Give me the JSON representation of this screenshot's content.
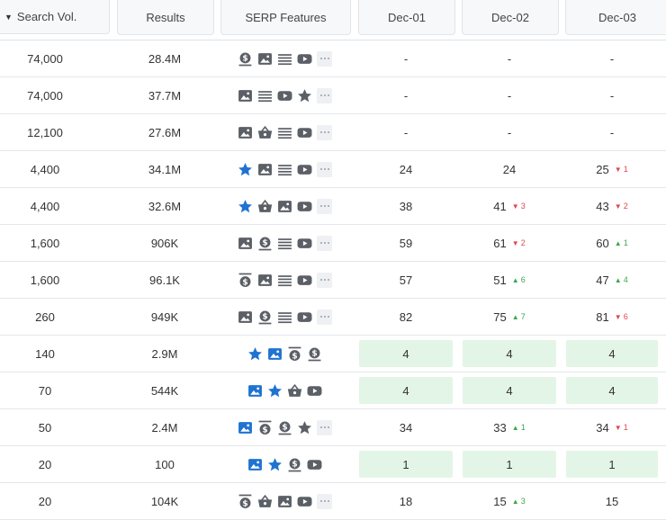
{
  "colors": {
    "icon_gray": "#5b5f66",
    "icon_blue": "#1f73d1",
    "up": "#3aa84a",
    "down": "#e0474c",
    "highlight": "#e3f5e7"
  },
  "header": {
    "sort_icon": "sort-desc-icon",
    "search_vol": "Search Vol.",
    "results": "Results",
    "serp": "SERP Features",
    "dates": [
      "Dec-01",
      "Dec-02",
      "Dec-03"
    ]
  },
  "rows": [
    {
      "vol": "74,000",
      "results": "28.4M",
      "features": [
        {
          "i": "money-box",
          "b": false
        },
        {
          "i": "image",
          "b": false
        },
        {
          "i": "lines",
          "b": false
        },
        {
          "i": "video",
          "b": false
        },
        {
          "i": "more",
          "b": false
        }
      ],
      "d": [
        {
          "v": "-",
          "c": "",
          "dir": "",
          "hl": false
        },
        {
          "v": "-",
          "c": "",
          "dir": "",
          "hl": false
        },
        {
          "v": "-",
          "c": "",
          "dir": "",
          "hl": false
        }
      ]
    },
    {
      "vol": "74,000",
      "results": "37.7M",
      "features": [
        {
          "i": "image",
          "b": false
        },
        {
          "i": "lines",
          "b": false
        },
        {
          "i": "video",
          "b": false
        },
        {
          "i": "star",
          "b": false
        },
        {
          "i": "more",
          "b": false
        }
      ],
      "d": [
        {
          "v": "-",
          "c": "",
          "dir": "",
          "hl": false
        },
        {
          "v": "-",
          "c": "",
          "dir": "",
          "hl": false
        },
        {
          "v": "-",
          "c": "",
          "dir": "",
          "hl": false
        }
      ]
    },
    {
      "vol": "12,100",
      "results": "27.6M",
      "features": [
        {
          "i": "image",
          "b": false
        },
        {
          "i": "basket",
          "b": false
        },
        {
          "i": "lines",
          "b": false
        },
        {
          "i": "video",
          "b": false
        },
        {
          "i": "more",
          "b": false
        }
      ],
      "d": [
        {
          "v": "-",
          "c": "",
          "dir": "",
          "hl": false
        },
        {
          "v": "-",
          "c": "",
          "dir": "",
          "hl": false
        },
        {
          "v": "-",
          "c": "",
          "dir": "",
          "hl": false
        }
      ]
    },
    {
      "vol": "4,400",
      "results": "34.1M",
      "features": [
        {
          "i": "star",
          "b": true
        },
        {
          "i": "image",
          "b": false
        },
        {
          "i": "lines",
          "b": false
        },
        {
          "i": "video",
          "b": false
        },
        {
          "i": "more",
          "b": false
        }
      ],
      "d": [
        {
          "v": "24",
          "c": "",
          "dir": "",
          "hl": false
        },
        {
          "v": "24",
          "c": "",
          "dir": "",
          "hl": false
        },
        {
          "v": "25",
          "c": "1",
          "dir": "down",
          "hl": false
        }
      ]
    },
    {
      "vol": "4,400",
      "results": "32.6M",
      "features": [
        {
          "i": "star",
          "b": true
        },
        {
          "i": "basket",
          "b": false
        },
        {
          "i": "image",
          "b": false
        },
        {
          "i": "video",
          "b": false
        },
        {
          "i": "more",
          "b": false
        }
      ],
      "d": [
        {
          "v": "38",
          "c": "",
          "dir": "",
          "hl": false
        },
        {
          "v": "41",
          "c": "3",
          "dir": "down",
          "hl": false
        },
        {
          "v": "43",
          "c": "2",
          "dir": "down",
          "hl": false
        }
      ]
    },
    {
      "vol": "1,600",
      "results": "906K",
      "features": [
        {
          "i": "image",
          "b": false
        },
        {
          "i": "money-box",
          "b": false
        },
        {
          "i": "lines",
          "b": false
        },
        {
          "i": "video",
          "b": false
        },
        {
          "i": "more",
          "b": false
        }
      ],
      "d": [
        {
          "v": "59",
          "c": "",
          "dir": "",
          "hl": false
        },
        {
          "v": "61",
          "c": "2",
          "dir": "down",
          "hl": false
        },
        {
          "v": "60",
          "c": "1",
          "dir": "up",
          "hl": false
        }
      ]
    },
    {
      "vol": "1,600",
      "results": "96.1K",
      "features": [
        {
          "i": "money-top",
          "b": false
        },
        {
          "i": "image",
          "b": false
        },
        {
          "i": "lines",
          "b": false
        },
        {
          "i": "video",
          "b": false
        },
        {
          "i": "more",
          "b": false
        }
      ],
      "d": [
        {
          "v": "57",
          "c": "",
          "dir": "",
          "hl": false
        },
        {
          "v": "51",
          "c": "6",
          "dir": "up",
          "hl": false
        },
        {
          "v": "47",
          "c": "4",
          "dir": "up",
          "hl": false
        }
      ]
    },
    {
      "vol": "260",
      "results": "949K",
      "features": [
        {
          "i": "image",
          "b": false
        },
        {
          "i": "money-box",
          "b": false
        },
        {
          "i": "lines",
          "b": false
        },
        {
          "i": "video",
          "b": false
        },
        {
          "i": "more",
          "b": false
        }
      ],
      "d": [
        {
          "v": "82",
          "c": "",
          "dir": "",
          "hl": false
        },
        {
          "v": "75",
          "c": "7",
          "dir": "up",
          "hl": false
        },
        {
          "v": "81",
          "c": "6",
          "dir": "down",
          "hl": false
        }
      ]
    },
    {
      "vol": "140",
      "results": "2.9M",
      "features": [
        {
          "i": "star",
          "b": true
        },
        {
          "i": "image",
          "b": true
        },
        {
          "i": "money-top",
          "b": false
        },
        {
          "i": "money-box",
          "b": false
        }
      ],
      "d": [
        {
          "v": "4",
          "c": "",
          "dir": "",
          "hl": true
        },
        {
          "v": "4",
          "c": "",
          "dir": "",
          "hl": true
        },
        {
          "v": "4",
          "c": "",
          "dir": "",
          "hl": true
        }
      ]
    },
    {
      "vol": "70",
      "results": "544K",
      "features": [
        {
          "i": "image",
          "b": true
        },
        {
          "i": "star",
          "b": true
        },
        {
          "i": "basket",
          "b": false
        },
        {
          "i": "video",
          "b": false
        }
      ],
      "d": [
        {
          "v": "4",
          "c": "",
          "dir": "",
          "hl": true
        },
        {
          "v": "4",
          "c": "",
          "dir": "",
          "hl": true
        },
        {
          "v": "4",
          "c": "",
          "dir": "",
          "hl": true
        }
      ]
    },
    {
      "vol": "50",
      "results": "2.4M",
      "features": [
        {
          "i": "image",
          "b": true
        },
        {
          "i": "money-top",
          "b": false
        },
        {
          "i": "money-box",
          "b": false
        },
        {
          "i": "star",
          "b": false
        },
        {
          "i": "more",
          "b": false
        }
      ],
      "d": [
        {
          "v": "34",
          "c": "",
          "dir": "",
          "hl": false
        },
        {
          "v": "33",
          "c": "1",
          "dir": "up",
          "hl": false
        },
        {
          "v": "34",
          "c": "1",
          "dir": "down",
          "hl": false
        }
      ]
    },
    {
      "vol": "20",
      "results": "100",
      "features": [
        {
          "i": "image",
          "b": true
        },
        {
          "i": "star",
          "b": true
        },
        {
          "i": "money-box",
          "b": false
        },
        {
          "i": "video",
          "b": false
        }
      ],
      "d": [
        {
          "v": "1",
          "c": "",
          "dir": "",
          "hl": true
        },
        {
          "v": "1",
          "c": "",
          "dir": "",
          "hl": true
        },
        {
          "v": "1",
          "c": "",
          "dir": "",
          "hl": true
        }
      ]
    },
    {
      "vol": "20",
      "results": "104K",
      "features": [
        {
          "i": "money-top",
          "b": false
        },
        {
          "i": "basket",
          "b": false
        },
        {
          "i": "image",
          "b": false
        },
        {
          "i": "video",
          "b": false
        },
        {
          "i": "more",
          "b": false
        }
      ],
      "d": [
        {
          "v": "18",
          "c": "",
          "dir": "",
          "hl": false
        },
        {
          "v": "15",
          "c": "3",
          "dir": "up",
          "hl": false
        },
        {
          "v": "15",
          "c": "",
          "dir": "",
          "hl": false
        }
      ]
    }
  ]
}
